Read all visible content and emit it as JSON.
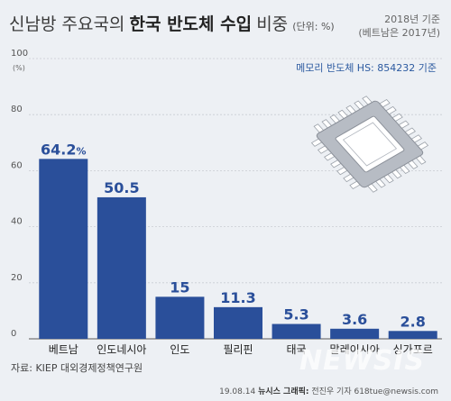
{
  "title": {
    "normal": "신남방 주요국의",
    "bold": "한국 반도체 수입",
    "suffix": "비중",
    "unit": "(단위: %)"
  },
  "meta": {
    "year": "2018년 기준",
    "vietnam_note": "(베트남은 2017년)"
  },
  "note": "메모리 반도체 HS: 854232 기준",
  "source": "자료: KIEP 대외경제정책연구원",
  "credit": {
    "date": "19.08.14",
    "agency": "뉴시스 그래픽:",
    "author": "전진우 기자 618tue@newsis.com"
  },
  "watermark": "NEWSIS",
  "colors": {
    "bar": "#2a4f9a",
    "background": "#edf0f4",
    "grid": "#c9ccd2",
    "chip_body": "#b7bcc4",
    "chip_pad": "#ffffff"
  },
  "icons": [
    "chip-icon"
  ],
  "chart_data": {
    "type": "bar",
    "categories": [
      "베트남",
      "인도네시아",
      "인도",
      "필리핀",
      "태국",
      "말레이시아",
      "싱가포르"
    ],
    "values": [
      64.2,
      50.5,
      15,
      11.3,
      5.3,
      3.6,
      2.8
    ],
    "value_labels": [
      "64.2",
      "50.5",
      "15",
      "11.3",
      "5.3",
      "3.6",
      "2.8"
    ],
    "value_label_unit_first": "%",
    "ylim": [
      0,
      100
    ],
    "yticks": [
      0,
      20,
      40,
      60,
      80,
      100
    ],
    "ytick_unit": "(%)",
    "grid": true,
    "legend": false
  }
}
